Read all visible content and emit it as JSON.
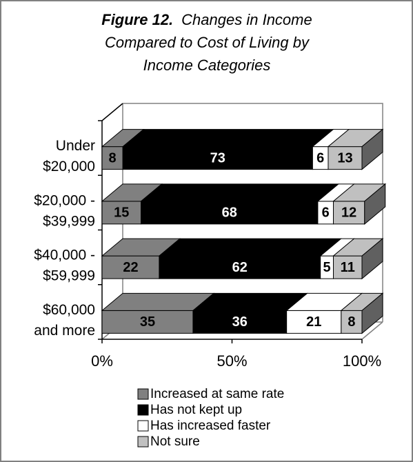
{
  "chart_data": {
    "type": "stacked-bar-3d",
    "figure_label": "Figure 12.",
    "title_lines": [
      "Changes in Income",
      "Compared to Cost of Living by",
      "Income Categories"
    ],
    "categories": [
      [
        "Under",
        "$20,000"
      ],
      [
        "$20,000 -",
        "$39,999"
      ],
      [
        "$40,000 -",
        "$59,999"
      ],
      [
        "$60,000",
        "and more"
      ]
    ],
    "series": [
      {
        "name": "Increased at same rate",
        "color": "#808080",
        "label_color": "#000000",
        "values": [
          8,
          15,
          22,
          35
        ]
      },
      {
        "name": "Has not kept up",
        "color": "#000000",
        "label_color": "#ffffff",
        "values": [
          73,
          68,
          62,
          36
        ]
      },
      {
        "name": "Has increased faster",
        "color": "#ffffff",
        "label_color": "#000000",
        "values": [
          6,
          6,
          5,
          21
        ]
      },
      {
        "name": "Not sure",
        "color": "#c0c0c0",
        "label_color": "#000000",
        "values": [
          13,
          12,
          11,
          8
        ]
      }
    ],
    "xlim": [
      0,
      100
    ],
    "xticks": [
      {
        "value": 0,
        "label": "0%"
      },
      {
        "value": 50,
        "label": "50%"
      },
      {
        "value": 100,
        "label": "100%"
      }
    ]
  }
}
